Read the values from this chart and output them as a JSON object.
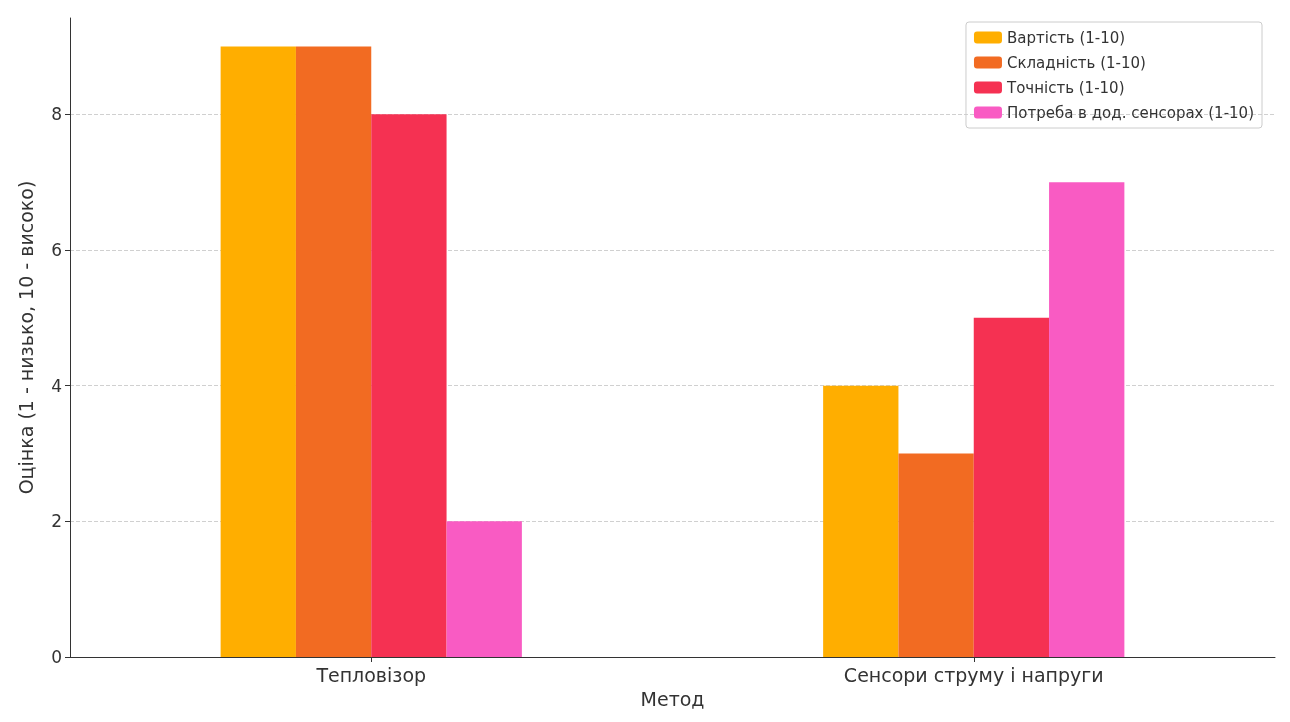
{
  "chart_data": {
    "type": "bar",
    "xlabel": "Метод",
    "ylabel": "Оцінка (1 - низько, 10 - високо)",
    "categories": [
      "Тепловізор",
      "Сенсори струму і напруги"
    ],
    "series": [
      {
        "name": "Вартість (1-10)",
        "color": "#ffae00",
        "values": [
          9,
          4
        ]
      },
      {
        "name": "Складність (1-10)",
        "color": "#f26b22",
        "values": [
          9,
          3
        ]
      },
      {
        "name": "Точність (1-10)",
        "color": "#f53152",
        "values": [
          8,
          5
        ]
      },
      {
        "name": "Потреба в дод. сенсорах (1-10)",
        "color": "#f95bc3",
        "values": [
          2,
          7
        ]
      }
    ],
    "ylim": [
      0,
      9.42
    ],
    "yticks": [
      0,
      2,
      4,
      6,
      8
    ],
    "grid": true,
    "legend": "top right"
  }
}
